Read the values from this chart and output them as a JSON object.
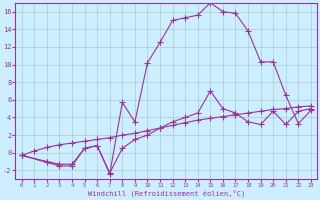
{
  "xlabel": "Windchill (Refroidissement éolien,°C)",
  "background_color": "#cceeff",
  "grid_color": "#aacccc",
  "line_color": "#993399",
  "xlim": [
    -0.5,
    23.5
  ],
  "ylim": [
    -3,
    17
  ],
  "xticks": [
    0,
    1,
    2,
    3,
    4,
    5,
    6,
    7,
    8,
    9,
    10,
    11,
    12,
    13,
    14,
    15,
    16,
    17,
    18,
    19,
    20,
    21,
    22,
    23
  ],
  "yticks": [
    -2,
    0,
    2,
    4,
    6,
    8,
    10,
    12,
    14,
    16
  ],
  "lines": [
    {
      "x": [
        0,
        1,
        2,
        3,
        4,
        5,
        6,
        7,
        8,
        9,
        10,
        11,
        12,
        13,
        14,
        15,
        16,
        17,
        18,
        19,
        20,
        21,
        22,
        23
      ],
      "y": [
        -0.3,
        0.2,
        0.6,
        0.9,
        1.1,
        1.3,
        1.5,
        1.7,
        2.0,
        2.2,
        2.5,
        2.8,
        3.1,
        3.4,
        3.7,
        3.9,
        4.1,
        4.3,
        4.5,
        4.7,
        4.9,
        5.0,
        5.2,
        5.3
      ]
    },
    {
      "x": [
        0,
        2,
        3,
        4,
        5,
        6,
        7,
        8,
        9,
        10,
        11,
        12,
        13,
        14,
        15,
        16,
        17,
        18,
        19,
        20,
        21,
        22,
        23
      ],
      "y": [
        -0.3,
        -1.0,
        -1.3,
        -1.3,
        0.5,
        0.8,
        -2.3,
        0.5,
        1.5,
        2.0,
        2.8,
        3.5,
        4.0,
        4.5,
        7.0,
        5.0,
        4.5,
        3.5,
        3.2,
        4.7,
        3.2,
        4.7,
        5.0
      ]
    },
    {
      "x": [
        0,
        2,
        3,
        4,
        5,
        6,
        7,
        8,
        9,
        10,
        11,
        12,
        13,
        14,
        15,
        16,
        17,
        18,
        19,
        20,
        21,
        22,
        23
      ],
      "y": [
        -0.3,
        -1.1,
        -1.5,
        -1.5,
        0.5,
        0.8,
        -2.4,
        5.7,
        3.5,
        10.2,
        12.5,
        15.0,
        15.3,
        15.6,
        17.0,
        16.0,
        15.8,
        13.8,
        10.3,
        10.3,
        6.5,
        3.3,
        4.8
      ]
    }
  ]
}
